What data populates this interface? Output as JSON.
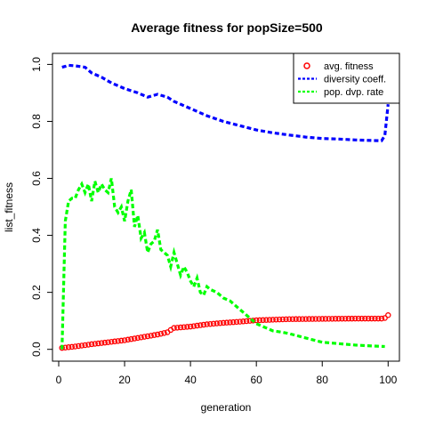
{
  "chart_data": {
    "type": "line",
    "title": "Average fitness for popSize=500",
    "xlabel": "generation",
    "ylabel": "list_fitness",
    "xlim": [
      1,
      100
    ],
    "ylim": [
      0,
      1.0
    ],
    "x_ticks": [
      "0",
      "20",
      "40",
      "60",
      "80",
      "100"
    ],
    "y_ticks": [
      "0.0",
      "0.2",
      "0.4",
      "0.6",
      "0.8",
      "1.0"
    ],
    "grid": false,
    "legend_position": "top-right",
    "legend": [
      {
        "label": "avg. fitness",
        "color": "#ff0000",
        "style": "circle"
      },
      {
        "label": "diversity coeff.",
        "color": "#0000ff",
        "style": "dashed"
      },
      {
        "label": "pop. dvp. rate",
        "color": "#00ff00",
        "style": "dashed"
      }
    ],
    "series": [
      {
        "name": "avg. fitness",
        "color": "#ff0000",
        "style": "points",
        "x": [
          1,
          5,
          10,
          15,
          20,
          25,
          30,
          33,
          34,
          35,
          40,
          45,
          50,
          55,
          58,
          60,
          65,
          70,
          80,
          90,
          98,
          99,
          100
        ],
        "y": [
          0.005,
          0.01,
          0.018,
          0.025,
          0.032,
          0.042,
          0.052,
          0.06,
          0.068,
          0.075,
          0.08,
          0.088,
          0.093,
          0.097,
          0.1,
          0.102,
          0.104,
          0.106,
          0.107,
          0.108,
          0.108,
          0.11,
          0.12
        ]
      },
      {
        "name": "diversity coeff.",
        "color": "#0000ff",
        "style": "dashed",
        "x": [
          1,
          2,
          3,
          5,
          8,
          10,
          13,
          16,
          20,
          24,
          27,
          30,
          33,
          35,
          38,
          40,
          45,
          50,
          55,
          60,
          65,
          70,
          75,
          80,
          85,
          90,
          95,
          98,
          99,
          100
        ],
        "y": [
          0.99,
          0.993,
          0.997,
          0.995,
          0.99,
          0.97,
          0.955,
          0.935,
          0.915,
          0.9,
          0.885,
          0.895,
          0.885,
          0.87,
          0.855,
          0.845,
          0.82,
          0.8,
          0.785,
          0.77,
          0.76,
          0.752,
          0.745,
          0.74,
          0.738,
          0.735,
          0.733,
          0.732,
          0.75,
          0.86
        ]
      },
      {
        "name": "pop. dvp. rate",
        "color": "#00ff00",
        "style": "dashed",
        "x": [
          1,
          2,
          3,
          4,
          5,
          6,
          7,
          8,
          9,
          10,
          11,
          12,
          13,
          14,
          15,
          16,
          17,
          18,
          19,
          20,
          21,
          22,
          23,
          24,
          25,
          26,
          27,
          28,
          29,
          30,
          31,
          32,
          33,
          34,
          35,
          36,
          37,
          38,
          39,
          40,
          41,
          42,
          43,
          44,
          45,
          46,
          48,
          50,
          52,
          54,
          56,
          58,
          60,
          62,
          65,
          68,
          70,
          75,
          80,
          85,
          90,
          95,
          99
        ],
        "y": [
          0.0,
          0.45,
          0.52,
          0.53,
          0.53,
          0.56,
          0.58,
          0.55,
          0.58,
          0.52,
          0.59,
          0.55,
          0.58,
          0.56,
          0.55,
          0.6,
          0.5,
          0.48,
          0.5,
          0.45,
          0.52,
          0.56,
          0.43,
          0.47,
          0.39,
          0.41,
          0.34,
          0.37,
          0.38,
          0.42,
          0.35,
          0.34,
          0.33,
          0.29,
          0.34,
          0.3,
          0.26,
          0.29,
          0.27,
          0.24,
          0.22,
          0.25,
          0.2,
          0.19,
          0.22,
          0.21,
          0.2,
          0.18,
          0.17,
          0.15,
          0.13,
          0.11,
          0.09,
          0.08,
          0.065,
          0.06,
          0.055,
          0.04,
          0.025,
          0.02,
          0.015,
          0.012,
          0.01
        ]
      }
    ]
  }
}
